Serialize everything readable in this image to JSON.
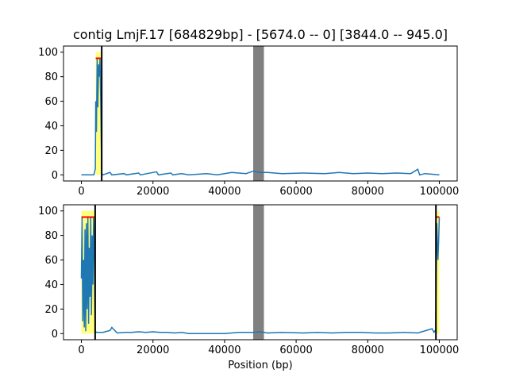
{
  "figure": {
    "title": "contig LmjF.17 [684829bp] - [5674.0 -- 0] [3844.0 -- 945.0]"
  },
  "chart_data": [
    {
      "type": "line",
      "title": "contig LmjF.17 [684829bp] - [5674.0 -- 0] [3844.0 -- 945.0]",
      "xlabel": "",
      "ylabel": "",
      "xlim": [
        -5000,
        105000
      ],
      "ylim": [
        -5,
        105
      ],
      "xticks": [
        0,
        20000,
        40000,
        60000,
        80000,
        100000
      ],
      "xtick_labels": [
        "0",
        "20000",
        "40000",
        "60000",
        "80000",
        "100000"
      ],
      "yticks": [
        0,
        20,
        40,
        60,
        80,
        100
      ],
      "ytick_labels": [
        "0",
        "20",
        "40",
        "60",
        "80",
        "100"
      ],
      "colors": {
        "line": "#1f77b4",
        "band": "#ffff80",
        "red": "#ff0000",
        "gap": "#808080",
        "marker": "#000000"
      },
      "gap_region": [
        48000,
        51000
      ],
      "vlines": [
        5674
      ],
      "yellow_bands": [
        {
          "x": [
            4000,
            5400
          ],
          "y": [
            0,
            100
          ]
        }
      ],
      "red_segments": [
        {
          "x": [
            4000,
            5400
          ],
          "y": 95
        }
      ],
      "series": [
        {
          "x": [
            0,
            3500,
            3900,
            4000,
            4200,
            4400,
            4600,
            4800,
            5000,
            5200,
            5400,
            5674,
            6000,
            8000,
            8500,
            12000,
            12500,
            16000,
            16500,
            21000,
            21500,
            25000,
            25500,
            28000,
            30000,
            35000,
            38000,
            42000,
            46000,
            48000,
            50000,
            52000,
            56000,
            62000,
            68000,
            72000,
            76000,
            80000,
            84000,
            88000,
            92000,
            94000,
            94500,
            96000,
            100000
          ],
          "y": [
            0,
            0,
            5,
            60,
            35,
            95,
            55,
            90,
            80,
            95,
            60,
            1,
            0,
            2,
            0,
            1,
            0,
            1.5,
            0,
            2.5,
            0,
            1.5,
            0,
            1,
            0,
            1,
            0,
            2,
            1,
            3,
            2,
            2,
            1,
            1.5,
            1,
            2,
            1,
            1.5,
            1,
            1.5,
            1,
            4.5,
            0,
            1,
            0
          ]
        }
      ]
    },
    {
      "type": "line",
      "title": "",
      "xlabel": "Position (bp)",
      "ylabel": "",
      "xlim": [
        -5000,
        105000
      ],
      "ylim": [
        -5,
        105
      ],
      "xticks": [
        0,
        20000,
        40000,
        60000,
        80000,
        100000
      ],
      "xtick_labels": [
        "0",
        "20000",
        "40000",
        "60000",
        "80000",
        "100000"
      ],
      "yticks": [
        0,
        20,
        40,
        60,
        80,
        100
      ],
      "ytick_labels": [
        "0",
        "20",
        "40",
        "60",
        "80",
        "100"
      ],
      "colors": {
        "line": "#1f77b4",
        "band": "#ffff80",
        "red": "#ff0000",
        "gap": "#808080",
        "marker": "#000000"
      },
      "gap_region": [
        48000,
        51000
      ],
      "vlines": [
        3844,
        99055
      ],
      "yellow_bands": [
        {
          "x": [
            0,
            3844
          ],
          "y": [
            0,
            100
          ]
        },
        {
          "x": [
            99055,
            100000
          ],
          "y": [
            0,
            100
          ]
        }
      ],
      "red_segments": [
        {
          "x": [
            0,
            3600
          ],
          "y": 95
        },
        {
          "x": [
            99200,
            100000
          ],
          "y": 95
        }
      ],
      "series": [
        {
          "x": [
            0,
            200,
            400,
            600,
            800,
            1000,
            1200,
            1400,
            1600,
            1800,
            2000,
            2200,
            2400,
            2600,
            2800,
            3000,
            3200,
            3400,
            3600,
            3844,
            4200,
            6000,
            8000,
            8500,
            10000,
            12000,
            14000,
            16000,
            18000,
            20000,
            22000,
            24000,
            26000,
            28000,
            30000,
            38000,
            40000,
            44000,
            48000,
            50000,
            52000,
            56000,
            62000,
            66000,
            70000,
            74000,
            78000,
            82000,
            86000,
            90000,
            94000,
            98000,
            98500,
            99000,
            99300,
            99600,
            99800,
            100000
          ],
          "y": [
            45,
            95,
            10,
            60,
            5,
            85,
            2,
            90,
            20,
            95,
            8,
            70,
            30,
            95,
            15,
            80,
            40,
            95,
            65,
            2,
            1,
            1,
            2.5,
            5,
            0.5,
            1,
            1,
            1.5,
            1,
            1.5,
            1,
            1,
            0.5,
            1,
            0,
            0,
            0,
            1,
            1,
            1.5,
            0.5,
            1,
            0.5,
            1,
            0.5,
            1,
            1,
            0.5,
            0.5,
            1,
            0.5,
            4,
            1,
            3,
            90,
            60,
            75,
            95
          ]
        }
      ]
    }
  ]
}
